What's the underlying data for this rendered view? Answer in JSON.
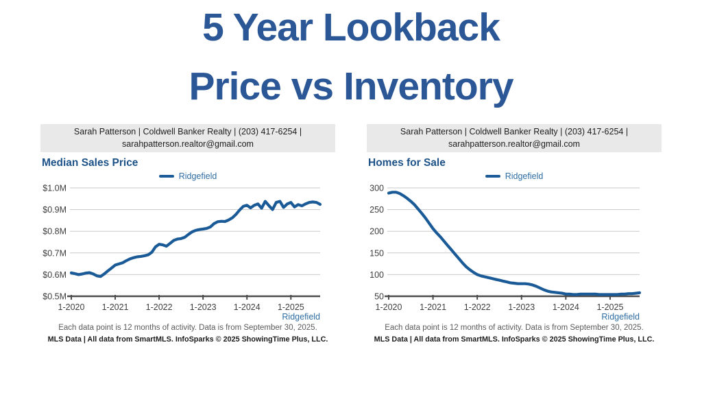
{
  "page": {
    "title_line1": "5 Year Lookback",
    "title_line2": "Price vs Inventory",
    "title_color": "#2b5797"
  },
  "contact_banner": {
    "text": "Sarah Patterson | Coldwell Banker Realty | (203) 417-6254 | sarahpatterson.realtor@gmail.com"
  },
  "panels": [
    {
      "title": "Median Sales Price",
      "legend_label": "Ridgefield",
      "bottom_right_label": "Ridgefield",
      "footnote_activity": "Each data point is 12 months of activity. Data is from September 30, 2025.",
      "footnote_source": "MLS Data | All data from SmartMLS. InfoSparks © 2025 ShowingTime Plus, LLC."
    },
    {
      "title": "Homes for Sale",
      "legend_label": "Ridgefield",
      "bottom_right_label": "Ridgefield",
      "footnote_activity": "Each data point is 12 months of activity. Data is from September 30, 2025.",
      "footnote_source": "MLS Data | All data from SmartMLS. InfoSparks © 2025 ShowingTime Plus, LLC."
    }
  ],
  "chart_data": [
    {
      "type": "line",
      "title": "Median Sales Price",
      "legend_position": "top",
      "grid": "horizontal",
      "x_tick_labels": [
        "1-2020",
        "1-2021",
        "1-2022",
        "1-2023",
        "1-2024",
        "1-2025"
      ],
      "points_per_year": 12,
      "x_range": "Jan 2020 to Sep 2025, monthly",
      "ylim": [
        0.5,
        1.0
      ],
      "y_ticks": [
        0.5,
        0.6,
        0.7,
        0.8,
        0.9,
        1.0
      ],
      "y_tick_labels": [
        "$0.5M",
        "$0.6M",
        "$0.7M",
        "$0.8M",
        "$0.9M",
        "$1.0M"
      ],
      "unit": "millions USD",
      "series": [
        {
          "name": "Ridgefield",
          "color": "#1a5a96",
          "values": [
            0.608,
            0.604,
            0.6,
            0.603,
            0.607,
            0.609,
            0.603,
            0.594,
            0.591,
            0.603,
            0.617,
            0.63,
            0.644,
            0.649,
            0.654,
            0.664,
            0.672,
            0.678,
            0.682,
            0.684,
            0.687,
            0.691,
            0.703,
            0.728,
            0.74,
            0.737,
            0.731,
            0.744,
            0.758,
            0.764,
            0.766,
            0.772,
            0.785,
            0.797,
            0.804,
            0.808,
            0.81,
            0.813,
            0.82,
            0.835,
            0.844,
            0.846,
            0.845,
            0.852,
            0.862,
            0.878,
            0.898,
            0.915,
            0.92,
            0.908,
            0.92,
            0.926,
            0.906,
            0.938,
            0.918,
            0.9,
            0.933,
            0.938,
            0.91,
            0.926,
            0.933,
            0.912,
            0.923,
            0.917,
            0.926,
            0.933,
            0.935,
            0.933,
            0.924
          ]
        }
      ]
    },
    {
      "type": "line",
      "title": "Homes for Sale",
      "legend_position": "top",
      "grid": "horizontal",
      "x_tick_labels": [
        "1-2020",
        "1-2021",
        "1-2022",
        "1-2023",
        "1-2024",
        "1-2025"
      ],
      "points_per_year": 12,
      "x_range": "Jan 2020 to Sep 2025, monthly",
      "ylim": [
        50,
        300
      ],
      "y_ticks": [
        50,
        100,
        150,
        200,
        250,
        300
      ],
      "y_tick_labels": [
        "50",
        "100",
        "150",
        "200",
        "250",
        "300"
      ],
      "unit": "homes",
      "series": [
        {
          "name": "Ridgefield",
          "color": "#1a5a96",
          "values": [
            288,
            290,
            290,
            287,
            282,
            276,
            269,
            261,
            251,
            241,
            230,
            218,
            206,
            196,
            187,
            177,
            167,
            157,
            147,
            137,
            127,
            118,
            111,
            105,
            100,
            97,
            95,
            93,
            91,
            89,
            87,
            85,
            83,
            81,
            80,
            79,
            79,
            79,
            78,
            76,
            73,
            69,
            65,
            62,
            60,
            59,
            58,
            57,
            55,
            55,
            54,
            54,
            55,
            55,
            55,
            55,
            55,
            54,
            54,
            54,
            54,
            54,
            54,
            55,
            55,
            56,
            56,
            57,
            58
          ]
        }
      ]
    }
  ]
}
